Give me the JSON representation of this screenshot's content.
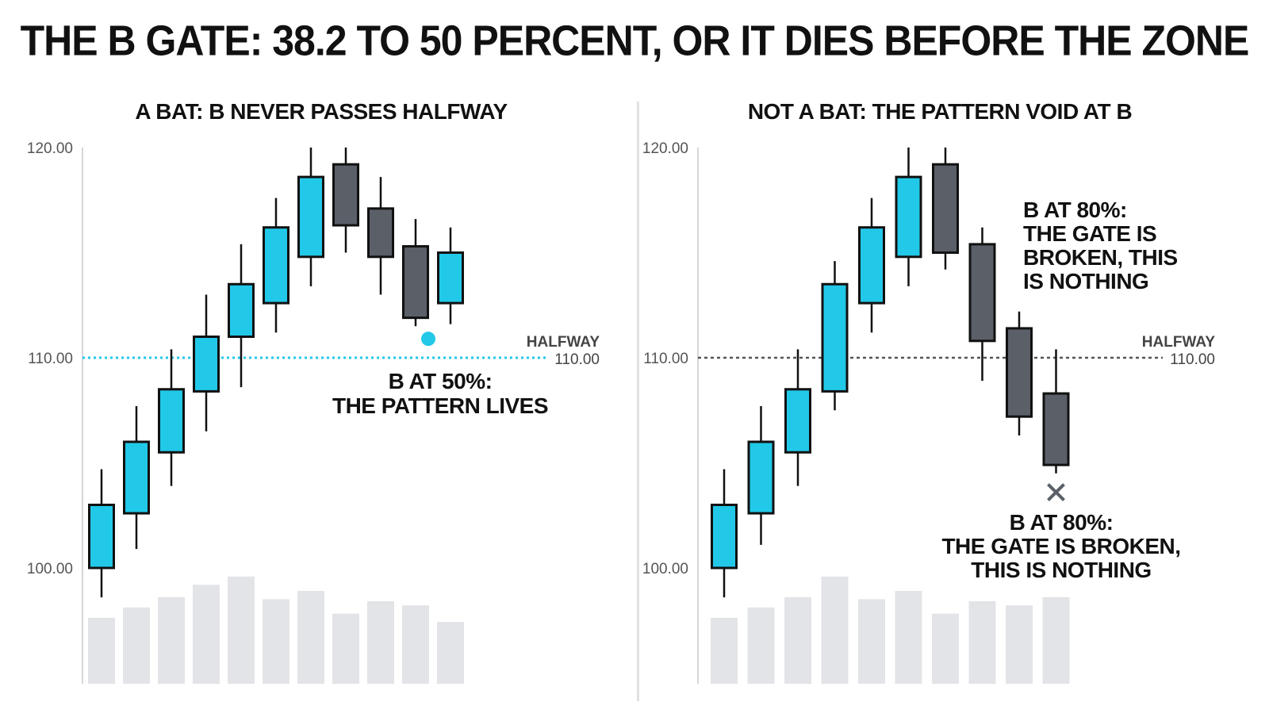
{
  "title": "THE B GATE: 38.2 TO 50 PERCENT, OR IT DIES BEFORE THE ZONE",
  "colors": {
    "bull": "#22c8e8",
    "bear": "#5a5f68",
    "outline": "#111111",
    "volume": "#e3e4e7",
    "axis": "#d6d6d8",
    "halfway_left": "#22c8e8",
    "halfway_right": "#555555",
    "x_marker": "#5a5f68"
  },
  "chart_data": [
    {
      "type": "candlestick",
      "title": "A BAT: B NEVER PASSES HALFWAY",
      "ylim": [
        94.6,
        120
      ],
      "y_ticks": [
        "100.00",
        "110.00",
        "120.00"
      ],
      "halfway": {
        "label": "HALFWAY",
        "value": 110,
        "value_label": "110.00"
      },
      "candles": [
        {
          "open": 100.0,
          "high": 104.7,
          "low": 98.6,
          "close": 103.0,
          "volume": 32
        },
        {
          "open": 102.6,
          "high": 107.7,
          "low": 100.9,
          "close": 106.0,
          "volume": 37
        },
        {
          "open": 105.5,
          "high": 110.4,
          "low": 103.9,
          "close": 108.5,
          "volume": 42
        },
        {
          "open": 108.4,
          "high": 113.0,
          "low": 106.5,
          "close": 111.0,
          "volume": 48
        },
        {
          "open": 111.0,
          "high": 115.4,
          "low": 108.6,
          "close": 113.5,
          "volume": 52
        },
        {
          "open": 112.6,
          "high": 117.6,
          "low": 111.2,
          "close": 116.2,
          "volume": 41
        },
        {
          "open": 114.8,
          "high": 120.0,
          "low": 113.4,
          "close": 118.6,
          "volume": 45
        },
        {
          "open": 119.2,
          "high": 120.0,
          "low": 115.0,
          "close": 116.3,
          "volume": 34
        },
        {
          "open": 117.1,
          "high": 118.6,
          "low": 113.0,
          "close": 114.8,
          "volume": 40
        },
        {
          "open": 115.3,
          "high": 116.6,
          "low": 111.5,
          "close": 111.9,
          "volume": 38
        },
        {
          "open": 112.6,
          "high": 116.2,
          "low": 111.6,
          "close": 115.0,
          "volume": 30
        }
      ],
      "b_marker": {
        "type": "dot",
        "candle": 9,
        "value": 110.9
      },
      "annotations": [
        {
          "lines": [
            "B AT 50%:",
            "THE PATTERN LIVES"
          ]
        }
      ]
    },
    {
      "type": "candlestick",
      "title": "NOT A BAT: THE PATTERN VOID AT B",
      "ylim": [
        94.6,
        120
      ],
      "y_ticks": [
        "100.00",
        "110.00",
        "120.00"
      ],
      "halfway": {
        "label": "HALFWAY",
        "value": 110,
        "value_label": "110.00"
      },
      "candles": [
        {
          "open": 100.0,
          "high": 104.7,
          "low": 98.6,
          "close": 103.0,
          "volume": 32
        },
        {
          "open": 102.6,
          "high": 107.7,
          "low": 101.1,
          "close": 106.0,
          "volume": 37
        },
        {
          "open": 105.5,
          "high": 110.4,
          "low": 103.9,
          "close": 108.5,
          "volume": 42
        },
        {
          "open": 108.4,
          "high": 114.6,
          "low": 107.5,
          "close": 113.5,
          "volume": 52
        },
        {
          "open": 112.6,
          "high": 117.6,
          "low": 111.2,
          "close": 116.2,
          "volume": 41
        },
        {
          "open": 114.8,
          "high": 120.0,
          "low": 113.4,
          "close": 118.6,
          "volume": 45
        },
        {
          "open": 119.2,
          "high": 120.0,
          "low": 114.2,
          "close": 115.0,
          "volume": 34
        },
        {
          "open": 115.4,
          "high": 116.2,
          "low": 108.9,
          "close": 110.8,
          "volume": 40
        },
        {
          "open": 111.4,
          "high": 112.2,
          "low": 106.3,
          "close": 107.2,
          "volume": 38
        },
        {
          "open": 108.3,
          "high": 110.4,
          "low": 104.5,
          "close": 104.9,
          "volume": 42
        }
      ],
      "b_marker": {
        "type": "x",
        "candle": 9,
        "value": 103.6
      },
      "annotations": [
        {
          "lines": [
            "B AT 80%:",
            "THE GATE IS",
            "BROKEN, THIS",
            "IS NOTHING"
          ]
        },
        {
          "lines": [
            "B AT 80%:",
            "THE GATE IS BROKEN,",
            "THIS IS NOTHING"
          ]
        }
      ]
    }
  ]
}
